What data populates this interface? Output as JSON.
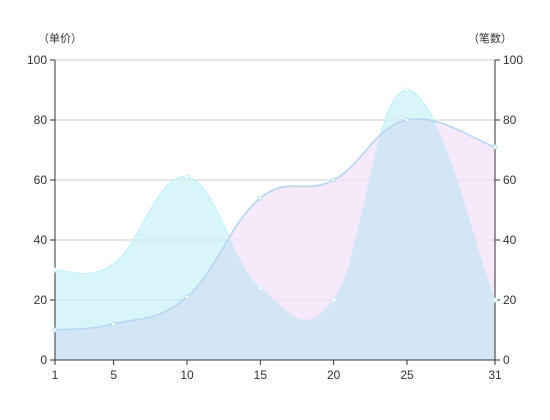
{
  "chart_data": {
    "type": "area",
    "x": [
      1,
      5,
      10,
      15,
      20,
      25,
      31
    ],
    "series": [
      {
        "values": [
          10,
          12,
          21,
          54,
          60,
          80,
          71
        ],
        "fill": "#f3e3f8",
        "fill_opacity": 0.75,
        "line": "#b7d6f2",
        "axis": "left"
      },
      {
        "values": [
          30,
          32,
          61,
          24,
          20,
          90,
          20
        ],
        "fill": "#c9f1f8",
        "fill_opacity": 0.7,
        "line": "#c9f1f8",
        "axis": "right"
      }
    ],
    "overlap_fill": "#d3e6f6",
    "y_left": {
      "title": "（单价）",
      "range": [
        0,
        100
      ],
      "ticks": [
        0,
        20,
        40,
        60,
        80,
        100
      ]
    },
    "y_right": {
      "title": "（笔数）",
      "range": [
        0,
        100
      ],
      "ticks": [
        0,
        20,
        40,
        60,
        80,
        100
      ]
    },
    "x_ticks": [
      1,
      5,
      10,
      15,
      20,
      25,
      31
    ],
    "grid": true,
    "smooth": true,
    "legend": "none"
  }
}
